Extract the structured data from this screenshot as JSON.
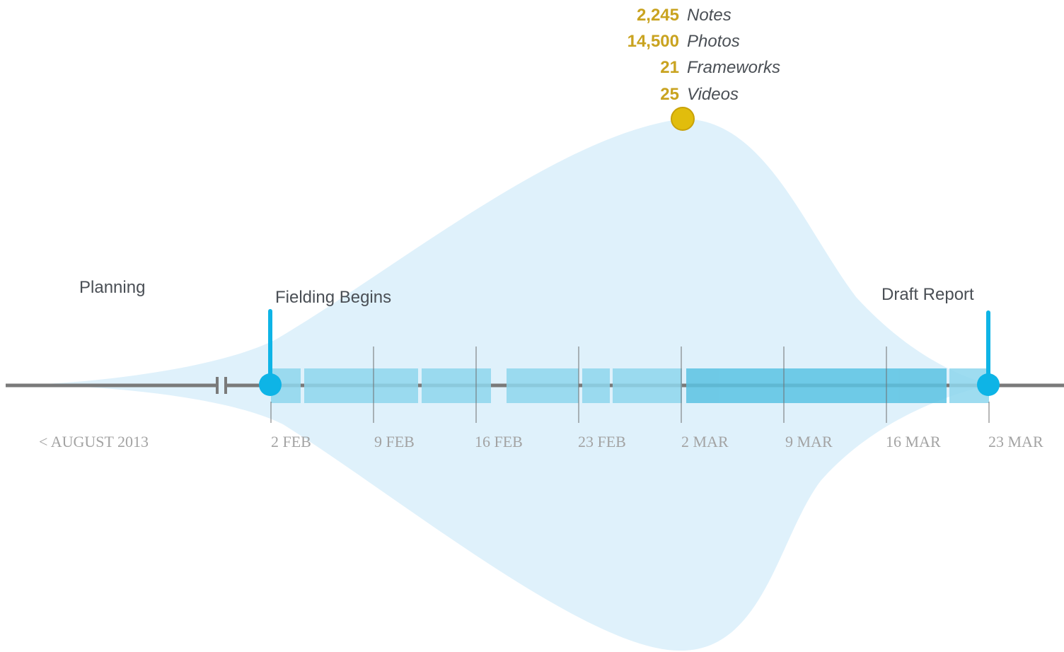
{
  "stats": [
    {
      "value": "2,245",
      "label": "Notes"
    },
    {
      "value": "14,500",
      "label": "Photos"
    },
    {
      "value": "21",
      "label": "Frameworks"
    },
    {
      "value": "25",
      "label": "Videos"
    }
  ],
  "phases": {
    "planning": "Planning",
    "fielding_begins": "Fielding Begins",
    "draft_report": "Draft Report"
  },
  "dates": [
    "< AUGUST 2013",
    "2 FEB",
    "9 FEB",
    "16 FEB",
    "23 FEB",
    "2 MAR",
    "9 MAR",
    "16 MAR",
    "23 MAR"
  ],
  "colors": {
    "volume_fill": "#dff1fb",
    "segment_light": "#8ed7ee",
    "segment_dark": "#5bc3e3",
    "marker": "#0eb4e6",
    "peak": "#e1bd0c",
    "stat_number": "#c9a320",
    "axis_line": "#7a7a7a",
    "date_text": "#a3a3a3",
    "phase_text": "#4a4f55"
  }
}
